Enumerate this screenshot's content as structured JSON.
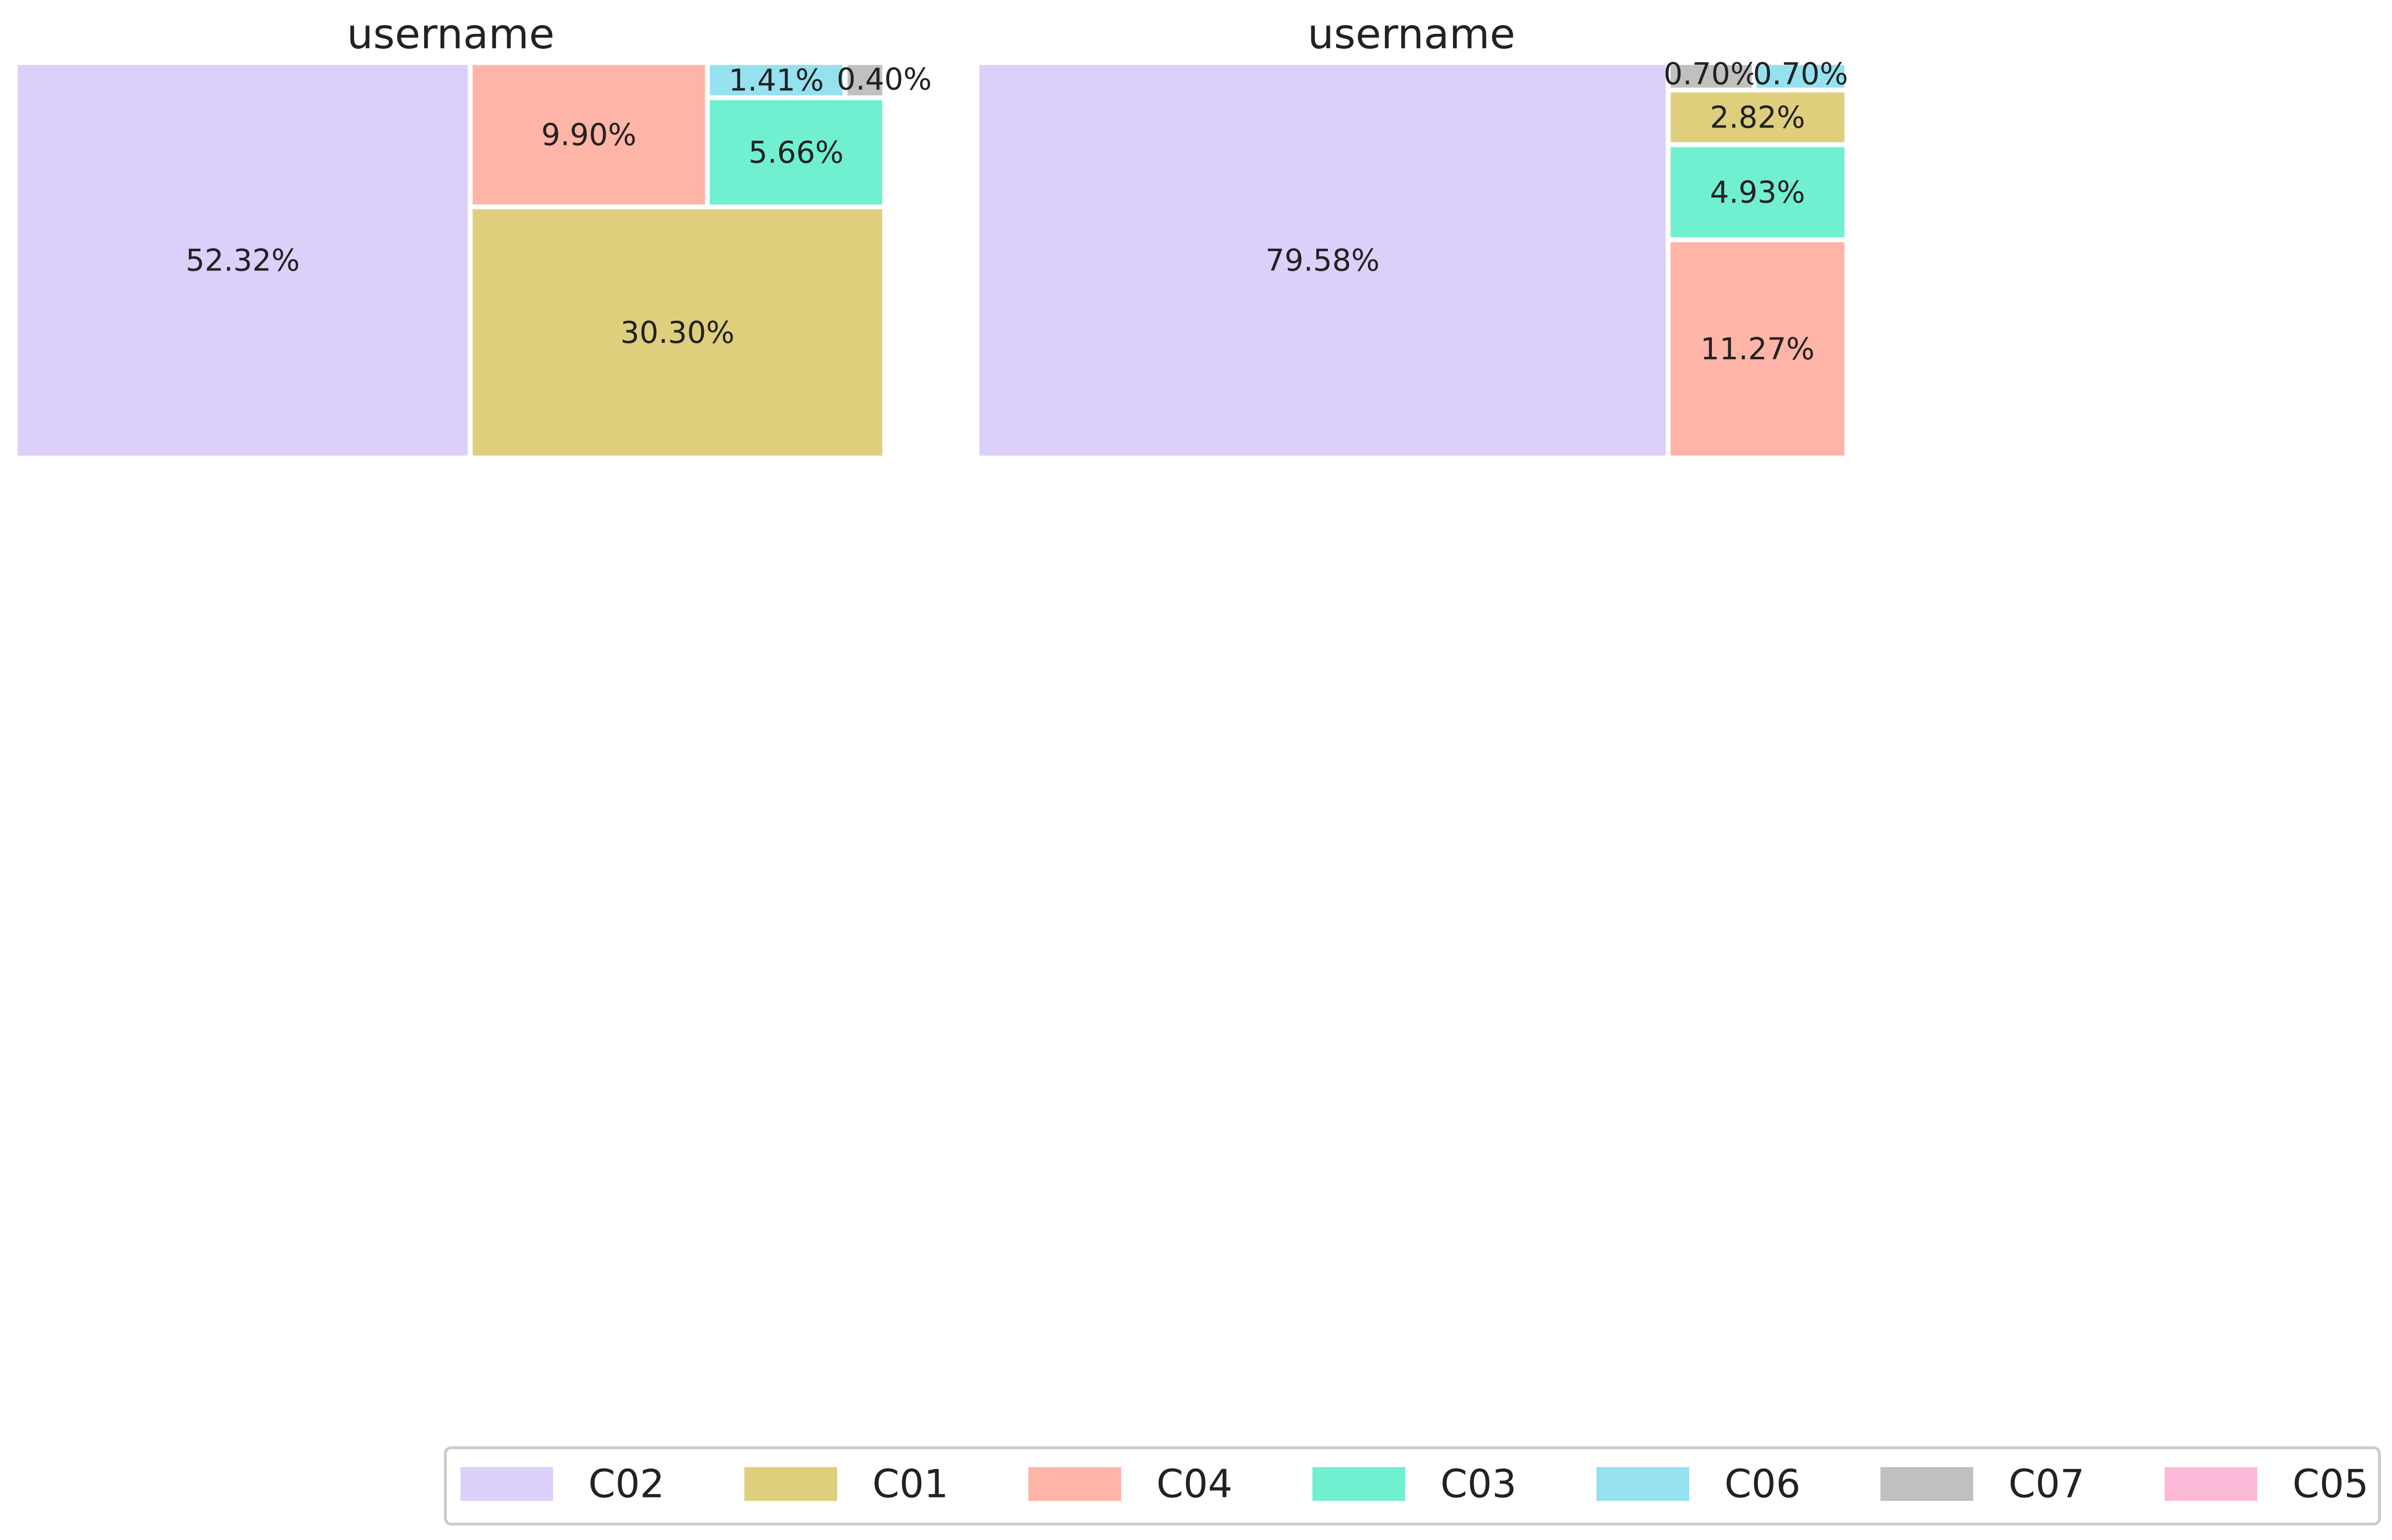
{
  "chart_data": [
    {
      "type": "treemap",
      "title": "username",
      "cells": [
        {
          "category": "C02",
          "value": 52.32,
          "label": "52.32%"
        },
        {
          "category": "C01",
          "value": 30.3,
          "label": "30.30%"
        },
        {
          "category": "C04",
          "value": 9.9,
          "label": "9.90%"
        },
        {
          "category": "C03",
          "value": 5.66,
          "label": "5.66%"
        },
        {
          "category": "C06",
          "value": 1.41,
          "label": "1.41%"
        },
        {
          "category": "C07",
          "value": 0.4,
          "label": "0.40%"
        }
      ]
    },
    {
      "type": "treemap",
      "title": "username",
      "cells": [
        {
          "category": "C02",
          "value": 79.58,
          "label": "79.58%"
        },
        {
          "category": "C04",
          "value": 11.27,
          "label": "11.27%"
        },
        {
          "category": "C03",
          "value": 4.93,
          "label": "4.93%"
        },
        {
          "category": "C01",
          "value": 2.82,
          "label": "2.82%"
        },
        {
          "category": "C07",
          "value": 0.7,
          "label": "0.70%"
        },
        {
          "category": "C06",
          "value": 0.7,
          "label": "0.70%"
        }
      ]
    }
  ],
  "legend": {
    "placement": "bottom-right",
    "items": [
      {
        "name": "C02",
        "color": "#dcd0fb"
      },
      {
        "name": "C01",
        "color": "#dfcf7c"
      },
      {
        "name": "C04",
        "color": "#feb4a6"
      },
      {
        "name": "C03",
        "color": "#70efd1"
      },
      {
        "name": "C06",
        "color": "#96e1ef"
      },
      {
        "name": "C07",
        "color": "#c0c0c0"
      },
      {
        "name": "C05",
        "color": "#fdbad8"
      }
    ]
  }
}
